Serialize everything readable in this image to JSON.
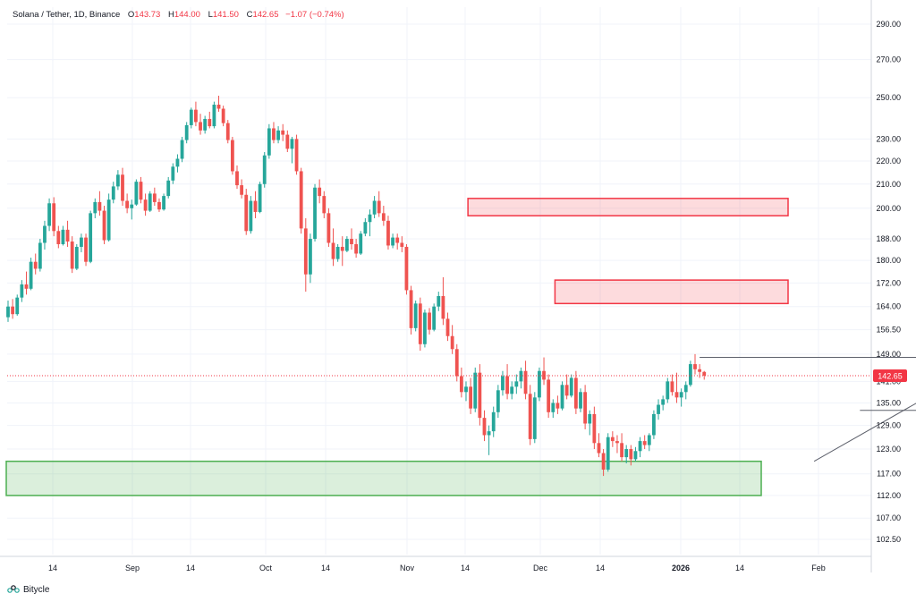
{
  "header": {
    "symbol": "Solana / Tether, 1D, Binance",
    "open_label": "O",
    "open": "143.73",
    "high_label": "H",
    "high": "144.00",
    "low_label": "L",
    "low": "141.50",
    "close_label": "C",
    "close": "142.65",
    "change": "−1.07 (−0.74%)"
  },
  "footer": {
    "brand": "Bitycle"
  },
  "colors": {
    "up": "#26a69a",
    "down": "#ef5350",
    "resistance": "#f23645",
    "support": "#4caf50",
    "price_tag": "#f23645"
  },
  "chart_data": {
    "type": "candlestick",
    "price_axis_labels": [
      "290.00",
      "270.00",
      "250.00",
      "230.00",
      "220.00",
      "210.00",
      "200.00",
      "188.00",
      "180.00",
      "172.00",
      "164.00",
      "156.50",
      "149.00",
      "141.00",
      "135.00",
      "129.00",
      "123.00",
      "117.00",
      "112.00",
      "107.00",
      "102.50"
    ],
    "time_axis_labels": [
      "14",
      "Sep",
      "14",
      "Oct",
      "14",
      "Nov",
      "14",
      "Dec",
      "14",
      "2026",
      "14",
      "Feb"
    ],
    "current_price": "142.65",
    "zones": [
      {
        "kind": "resistance",
        "top": 204,
        "bottom": 197,
        "from_index": 101,
        "to": "right"
      },
      {
        "kind": "resistance",
        "top": 173,
        "bottom": 165,
        "from_index": 120,
        "to": "right"
      },
      {
        "kind": "support",
        "top": 120,
        "bottom": 112,
        "from_index": 0,
        "to": "right"
      }
    ],
    "lines": [
      {
        "kind": "horizontal",
        "price": 148.0,
        "from_index": 151,
        "to_index": 200
      },
      {
        "kind": "horizontal",
        "price": 133.0,
        "from_index": 186,
        "to_index": 208
      },
      {
        "kind": "trendline",
        "from_index": 176,
        "from_price": 120.0,
        "to_index": 208,
        "to_price": 142.0
      }
    ],
    "candles": [
      [
        160.5,
        166.0,
        159.0,
        164.0
      ],
      [
        164.0,
        166.5,
        160.0,
        161.5
      ],
      [
        161.5,
        168.0,
        161.0,
        167.0
      ],
      [
        167.0,
        173.0,
        165.5,
        171.5
      ],
      [
        171.5,
        176.0,
        168.0,
        170.0
      ],
      [
        170.0,
        181.0,
        169.5,
        179.5
      ],
      [
        179.5,
        182.5,
        175.0,
        177.0
      ],
      [
        177.0,
        188.0,
        176.0,
        186.5
      ],
      [
        186.5,
        195.0,
        184.0,
        193.0
      ],
      [
        193.0,
        204.0,
        191.0,
        202.0
      ],
      [
        202.0,
        204.5,
        189.0,
        191.0
      ],
      [
        191.0,
        193.0,
        184.5,
        186.0
      ],
      [
        186.0,
        193.0,
        185.5,
        191.5
      ],
      [
        191.5,
        195.0,
        185.0,
        187.0
      ],
      [
        187.0,
        189.0,
        175.5,
        177.0
      ],
      [
        177.0,
        186.0,
        176.5,
        185.0
      ],
      [
        185.0,
        190.0,
        183.0,
        188.5
      ],
      [
        188.5,
        190.0,
        178.0,
        179.5
      ],
      [
        179.5,
        199.0,
        179.0,
        198.0
      ],
      [
        198.0,
        204.0,
        196.0,
        202.5
      ],
      [
        202.5,
        207.0,
        197.0,
        199.0
      ],
      [
        199.0,
        201.0,
        186.0,
        187.5
      ],
      [
        187.5,
        206.0,
        187.0,
        203.5
      ],
      [
        203.5,
        211.0,
        202.0,
        209.0
      ],
      [
        209.0,
        216.0,
        207.5,
        214.0
      ],
      [
        214.0,
        217.0,
        201.0,
        203.0
      ],
      [
        203.0,
        206.0,
        198.0,
        200.0
      ],
      [
        200.0,
        203.5,
        195.5,
        201.5
      ],
      [
        201.5,
        212.0,
        201.0,
        211.0
      ],
      [
        211.0,
        213.0,
        202.0,
        203.5
      ],
      [
        203.5,
        206.0,
        197.0,
        199.0
      ],
      [
        199.0,
        207.0,
        198.5,
        206.0
      ],
      [
        206.0,
        208.5,
        201.0,
        202.5
      ],
      [
        202.5,
        204.0,
        198.5,
        199.5
      ],
      [
        199.5,
        206.0,
        199.0,
        205.0
      ],
      [
        205.0,
        213.0,
        204.0,
        211.5
      ],
      [
        211.5,
        219.0,
        210.0,
        217.5
      ],
      [
        217.5,
        223.0,
        215.0,
        221.0
      ],
      [
        221.0,
        231.0,
        219.5,
        229.5
      ],
      [
        229.5,
        238.0,
        228.0,
        236.5
      ],
      [
        236.5,
        245.0,
        235.0,
        244.0
      ],
      [
        244.0,
        248.0,
        236.0,
        238.0
      ],
      [
        238.0,
        242.0,
        232.0,
        234.0
      ],
      [
        234.0,
        241.0,
        232.5,
        239.5
      ],
      [
        239.5,
        243.0,
        235.0,
        236.0
      ],
      [
        236.0,
        248.0,
        235.0,
        246.5
      ],
      [
        246.5,
        251.0,
        243.0,
        244.5
      ],
      [
        244.5,
        246.0,
        236.0,
        237.5
      ],
      [
        237.5,
        239.0,
        228.0,
        229.5
      ],
      [
        229.5,
        231.0,
        214.0,
        215.5
      ],
      [
        215.5,
        218.0,
        208.0,
        209.5
      ],
      [
        209.5,
        212.0,
        204.0,
        205.5
      ],
      [
        205.5,
        208.0,
        189.5,
        191.0
      ],
      [
        191.0,
        205.0,
        190.0,
        203.0
      ],
      [
        203.0,
        207.0,
        196.0,
        198.5
      ],
      [
        198.5,
        211.0,
        198.0,
        210.0
      ],
      [
        210.0,
        224.0,
        208.5,
        222.5
      ],
      [
        222.5,
        237.0,
        221.0,
        235.0
      ],
      [
        235.0,
        238.0,
        228.0,
        229.5
      ],
      [
        229.5,
        236.0,
        228.0,
        234.0
      ],
      [
        234.0,
        237.0,
        229.0,
        232.0
      ],
      [
        232.0,
        234.0,
        224.0,
        225.5
      ],
      [
        225.5,
        231.0,
        219.0,
        230.0
      ],
      [
        230.0,
        232.0,
        214.0,
        215.5
      ],
      [
        215.5,
        217.0,
        190.0,
        192.0
      ],
      [
        192.0,
        196.0,
        169.0,
        175.0
      ],
      [
        175.0,
        190.0,
        172.0,
        188.0
      ],
      [
        188.0,
        210.0,
        187.0,
        208.5
      ],
      [
        208.5,
        212.0,
        202.0,
        205.0
      ],
      [
        205.0,
        207.0,
        196.0,
        198.0
      ],
      [
        198.0,
        200.0,
        185.0,
        186.5
      ],
      [
        186.5,
        192.0,
        178.0,
        180.5
      ],
      [
        180.5,
        186.0,
        179.5,
        185.0
      ],
      [
        185.0,
        189.0,
        178.0,
        183.5
      ],
      [
        183.5,
        189.0,
        183.0,
        188.0
      ],
      [
        188.0,
        192.0,
        184.0,
        186.0
      ],
      [
        186.0,
        188.0,
        181.0,
        182.5
      ],
      [
        182.5,
        191.0,
        182.0,
        190.0
      ],
      [
        190.0,
        196.0,
        189.0,
        194.5
      ],
      [
        194.5,
        199.5,
        189.0,
        197.5
      ],
      [
        197.5,
        205.0,
        196.0,
        203.0
      ],
      [
        203.0,
        207.0,
        196.5,
        198.0
      ],
      [
        198.0,
        201.0,
        193.0,
        195.0
      ],
      [
        195.0,
        197.0,
        184.0,
        185.5
      ],
      [
        185.5,
        190.0,
        184.5,
        188.5
      ],
      [
        188.5,
        190.0,
        184.0,
        186.5
      ],
      [
        186.5,
        189.0,
        183.0,
        185.0
      ],
      [
        185.0,
        186.0,
        168.0,
        169.5
      ],
      [
        169.5,
        171.0,
        155.0,
        157.0
      ],
      [
        157.0,
        166.0,
        156.0,
        165.0
      ],
      [
        165.0,
        167.0,
        150.0,
        152.0
      ],
      [
        152.0,
        163.0,
        151.0,
        162.0
      ],
      [
        162.0,
        163.5,
        155.0,
        156.5
      ],
      [
        156.5,
        165.0,
        156.0,
        164.0
      ],
      [
        164.0,
        169.0,
        162.5,
        167.5
      ],
      [
        167.5,
        174.0,
        158.0,
        160.0
      ],
      [
        160.0,
        162.0,
        153.0,
        154.5
      ],
      [
        154.5,
        158.0,
        149.0,
        150.5
      ],
      [
        150.5,
        152.0,
        141.0,
        142.5
      ],
      [
        142.5,
        145.0,
        136.5,
        138.0
      ],
      [
        138.0,
        141.0,
        135.5,
        139.5
      ],
      [
        139.5,
        142.0,
        132.0,
        133.5
      ],
      [
        133.5,
        145.0,
        132.5,
        143.5
      ],
      [
        143.5,
        146.0,
        129.0,
        131.0
      ],
      [
        131.0,
        133.0,
        125.0,
        126.5
      ],
      [
        126.5,
        129.0,
        121.5,
        127.5
      ],
      [
        127.5,
        134.0,
        126.0,
        132.5
      ],
      [
        132.5,
        140.0,
        131.0,
        138.5
      ],
      [
        138.5,
        144.0,
        137.0,
        142.5
      ],
      [
        142.5,
        146.0,
        136.0,
        137.5
      ],
      [
        137.5,
        141.0,
        136.0,
        139.5
      ],
      [
        139.5,
        143.0,
        137.5,
        141.0
      ],
      [
        141.0,
        145.0,
        139.0,
        144.0
      ],
      [
        144.0,
        147.0,
        136.0,
        137.5
      ],
      [
        137.5,
        140.0,
        124.0,
        125.5
      ],
      [
        125.5,
        138.0,
        124.5,
        136.5
      ],
      [
        136.5,
        145.0,
        135.5,
        144.0
      ],
      [
        144.0,
        148.0,
        140.0,
        141.5
      ],
      [
        141.5,
        143.0,
        131.0,
        132.5
      ],
      [
        132.5,
        136.0,
        131.0,
        135.0
      ],
      [
        135.0,
        137.0,
        132.0,
        133.5
      ],
      [
        133.5,
        141.0,
        133.0,
        140.0
      ],
      [
        140.0,
        143.0,
        136.0,
        137.0
      ],
      [
        137.0,
        143.0,
        136.5,
        142.0
      ],
      [
        142.0,
        144.0,
        132.0,
        133.5
      ],
      [
        133.5,
        139.0,
        132.5,
        138.0
      ],
      [
        138.0,
        140.0,
        128.0,
        129.5
      ],
      [
        129.5,
        133.0,
        126.5,
        132.0
      ],
      [
        132.0,
        134.0,
        123.0,
        124.5
      ],
      [
        124.5,
        127.0,
        121.0,
        122.0
      ],
      [
        122.0,
        123.0,
        116.5,
        118.0
      ],
      [
        118.0,
        127.0,
        117.5,
        126.0
      ],
      [
        126.0,
        127.5,
        123.5,
        125.0
      ],
      [
        125.0,
        126.5,
        122.0,
        124.5
      ],
      [
        124.5,
        127.0,
        120.0,
        121.0
      ],
      [
        121.0,
        124.0,
        119.5,
        123.0
      ],
      [
        123.0,
        124.0,
        119.0,
        120.5
      ],
      [
        120.5,
        123.5,
        120.0,
        122.5
      ],
      [
        122.5,
        126.0,
        121.0,
        125.0
      ],
      [
        125.0,
        126.5,
        123.0,
        124.0
      ],
      [
        124.0,
        127.0,
        122.5,
        126.5
      ],
      [
        126.5,
        133.0,
        125.5,
        132.0
      ],
      [
        132.0,
        136.0,
        130.5,
        134.5
      ],
      [
        134.5,
        137.0,
        133.0,
        136.0
      ],
      [
        136.0,
        142.0,
        135.0,
        141.0
      ],
      [
        141.0,
        143.0,
        137.0,
        138.0
      ],
      [
        138.0,
        143.5,
        135.0,
        136.5
      ],
      [
        136.5,
        139.0,
        134.0,
        138.0
      ],
      [
        138.0,
        141.0,
        136.0,
        140.0
      ],
      [
        140.0,
        147.0,
        139.5,
        146.0
      ],
      [
        146.0,
        149.0,
        143.0,
        144.5
      ],
      [
        144.5,
        146.0,
        142.0,
        143.73
      ],
      [
        143.73,
        144.0,
        141.5,
        142.65
      ]
    ]
  }
}
